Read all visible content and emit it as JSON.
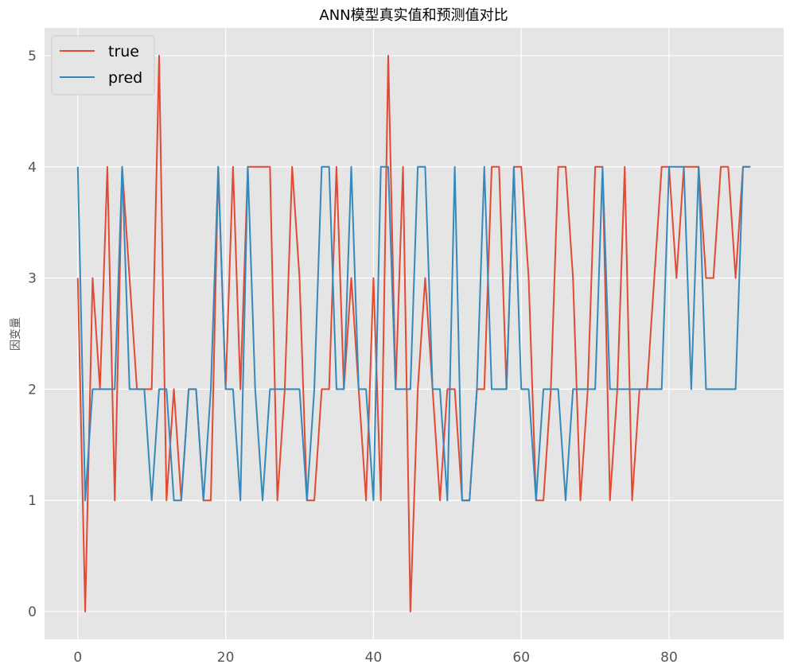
{
  "chart_data": {
    "type": "line",
    "title": "ANN模型真实值和预测值对比",
    "xlabel": "",
    "ylabel": "因变量",
    "xlim": [
      -4.5,
      95.5
    ],
    "ylim": [
      -0.25,
      5.25
    ],
    "xticks": [
      0,
      20,
      40,
      60,
      80
    ],
    "yticks": [
      0,
      1,
      2,
      3,
      4,
      5
    ],
    "grid": true,
    "legend": "top-left",
    "colors": {
      "true": "#e24a33",
      "pred": "#348abd",
      "background": "#e5e5e5",
      "grid": "#ffffff"
    },
    "series": [
      {
        "name": "true",
        "color": "#e24a33",
        "values": [
          3,
          0,
          3,
          2,
          4,
          1,
          4,
          3,
          2,
          2,
          2,
          5,
          1,
          2,
          1,
          2,
          2,
          1,
          1,
          4,
          2,
          4,
          2,
          4,
          4,
          4,
          4,
          1,
          2,
          4,
          3,
          1,
          1,
          2,
          2,
          4,
          2,
          3,
          2,
          1,
          3,
          1,
          5,
          2,
          4,
          0,
          2,
          3,
          2,
          1,
          2,
          2,
          1,
          1,
          2,
          2,
          4,
          4,
          2,
          4,
          4,
          3,
          1,
          1,
          2,
          4,
          4,
          3,
          1,
          2,
          4,
          4,
          1,
          2,
          4,
          1,
          2,
          2,
          3,
          4,
          4,
          3,
          4,
          4,
          4,
          3,
          3,
          4,
          4,
          3,
          4,
          4
        ]
      },
      {
        "name": "pred",
        "color": "#348abd",
        "values": [
          4,
          1,
          2,
          2,
          2,
          2,
          4,
          2,
          2,
          2,
          1,
          2,
          2,
          1,
          1,
          2,
          2,
          1,
          2,
          4,
          2,
          2,
          1,
          4,
          2,
          1,
          2,
          2,
          2,
          2,
          2,
          1,
          2,
          4,
          4,
          2,
          2,
          4,
          2,
          2,
          1,
          4,
          4,
          2,
          2,
          2,
          4,
          4,
          2,
          2,
          1,
          4,
          1,
          1,
          2,
          4,
          2,
          2,
          2,
          4,
          2,
          2,
          1,
          2,
          2,
          2,
          1,
          2,
          2,
          2,
          2,
          4,
          2,
          2,
          2,
          2,
          2,
          2,
          2,
          2,
          4,
          4,
          4,
          2,
          4,
          2,
          2,
          2,
          2,
          2,
          4,
          4
        ]
      }
    ]
  }
}
